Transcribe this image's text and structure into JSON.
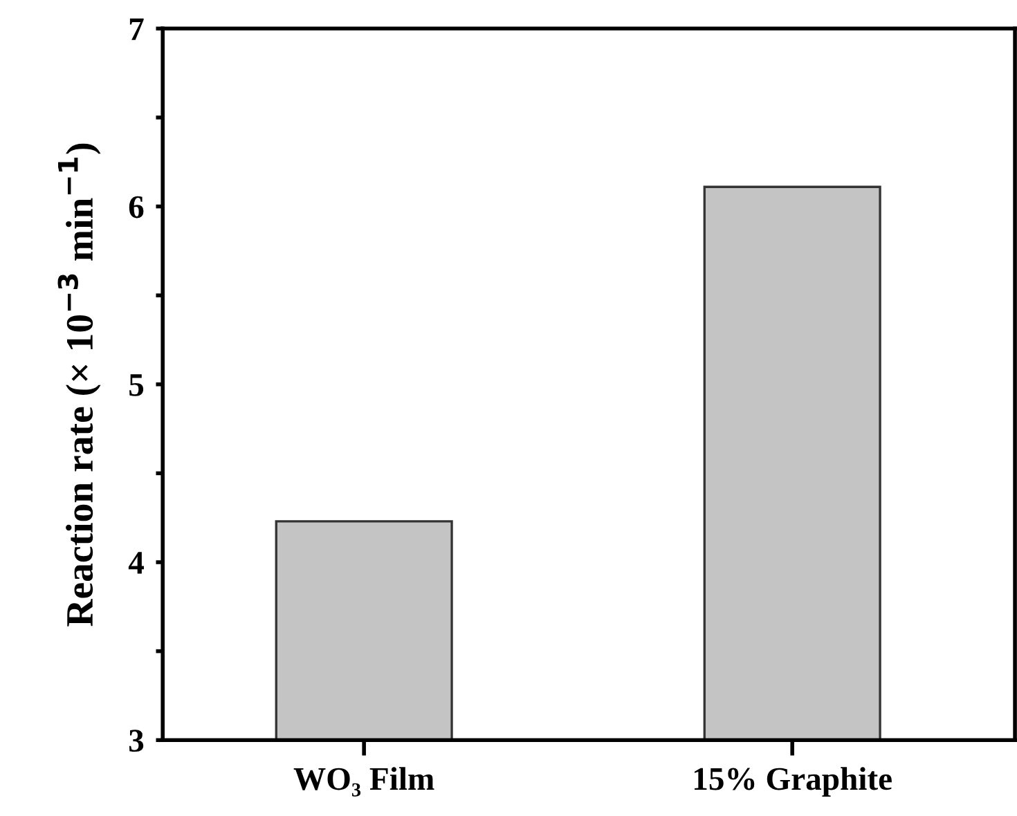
{
  "chart_data": {
    "type": "bar",
    "ylabel": "Reaction rate (× 10$^{−3}$ min$^{−1}$)",
    "categories": [
      "WO₃ Film",
      "15% Graphite"
    ],
    "values": [
      4.23,
      6.11
    ],
    "color": "#c4c4c4",
    "ylim": [
      3,
      7
    ],
    "yticks": [
      3,
      {
        "value": 3.5,
        "label": null
      },
      4,
      {
        "value": 4.5,
        "label": null
      },
      5,
      {
        "value": 5.5,
        "label": null
      },
      6,
      {
        "value": 6.5,
        "label": null
      },
      7
    ],
    "grid": false,
    "legend": false
  }
}
